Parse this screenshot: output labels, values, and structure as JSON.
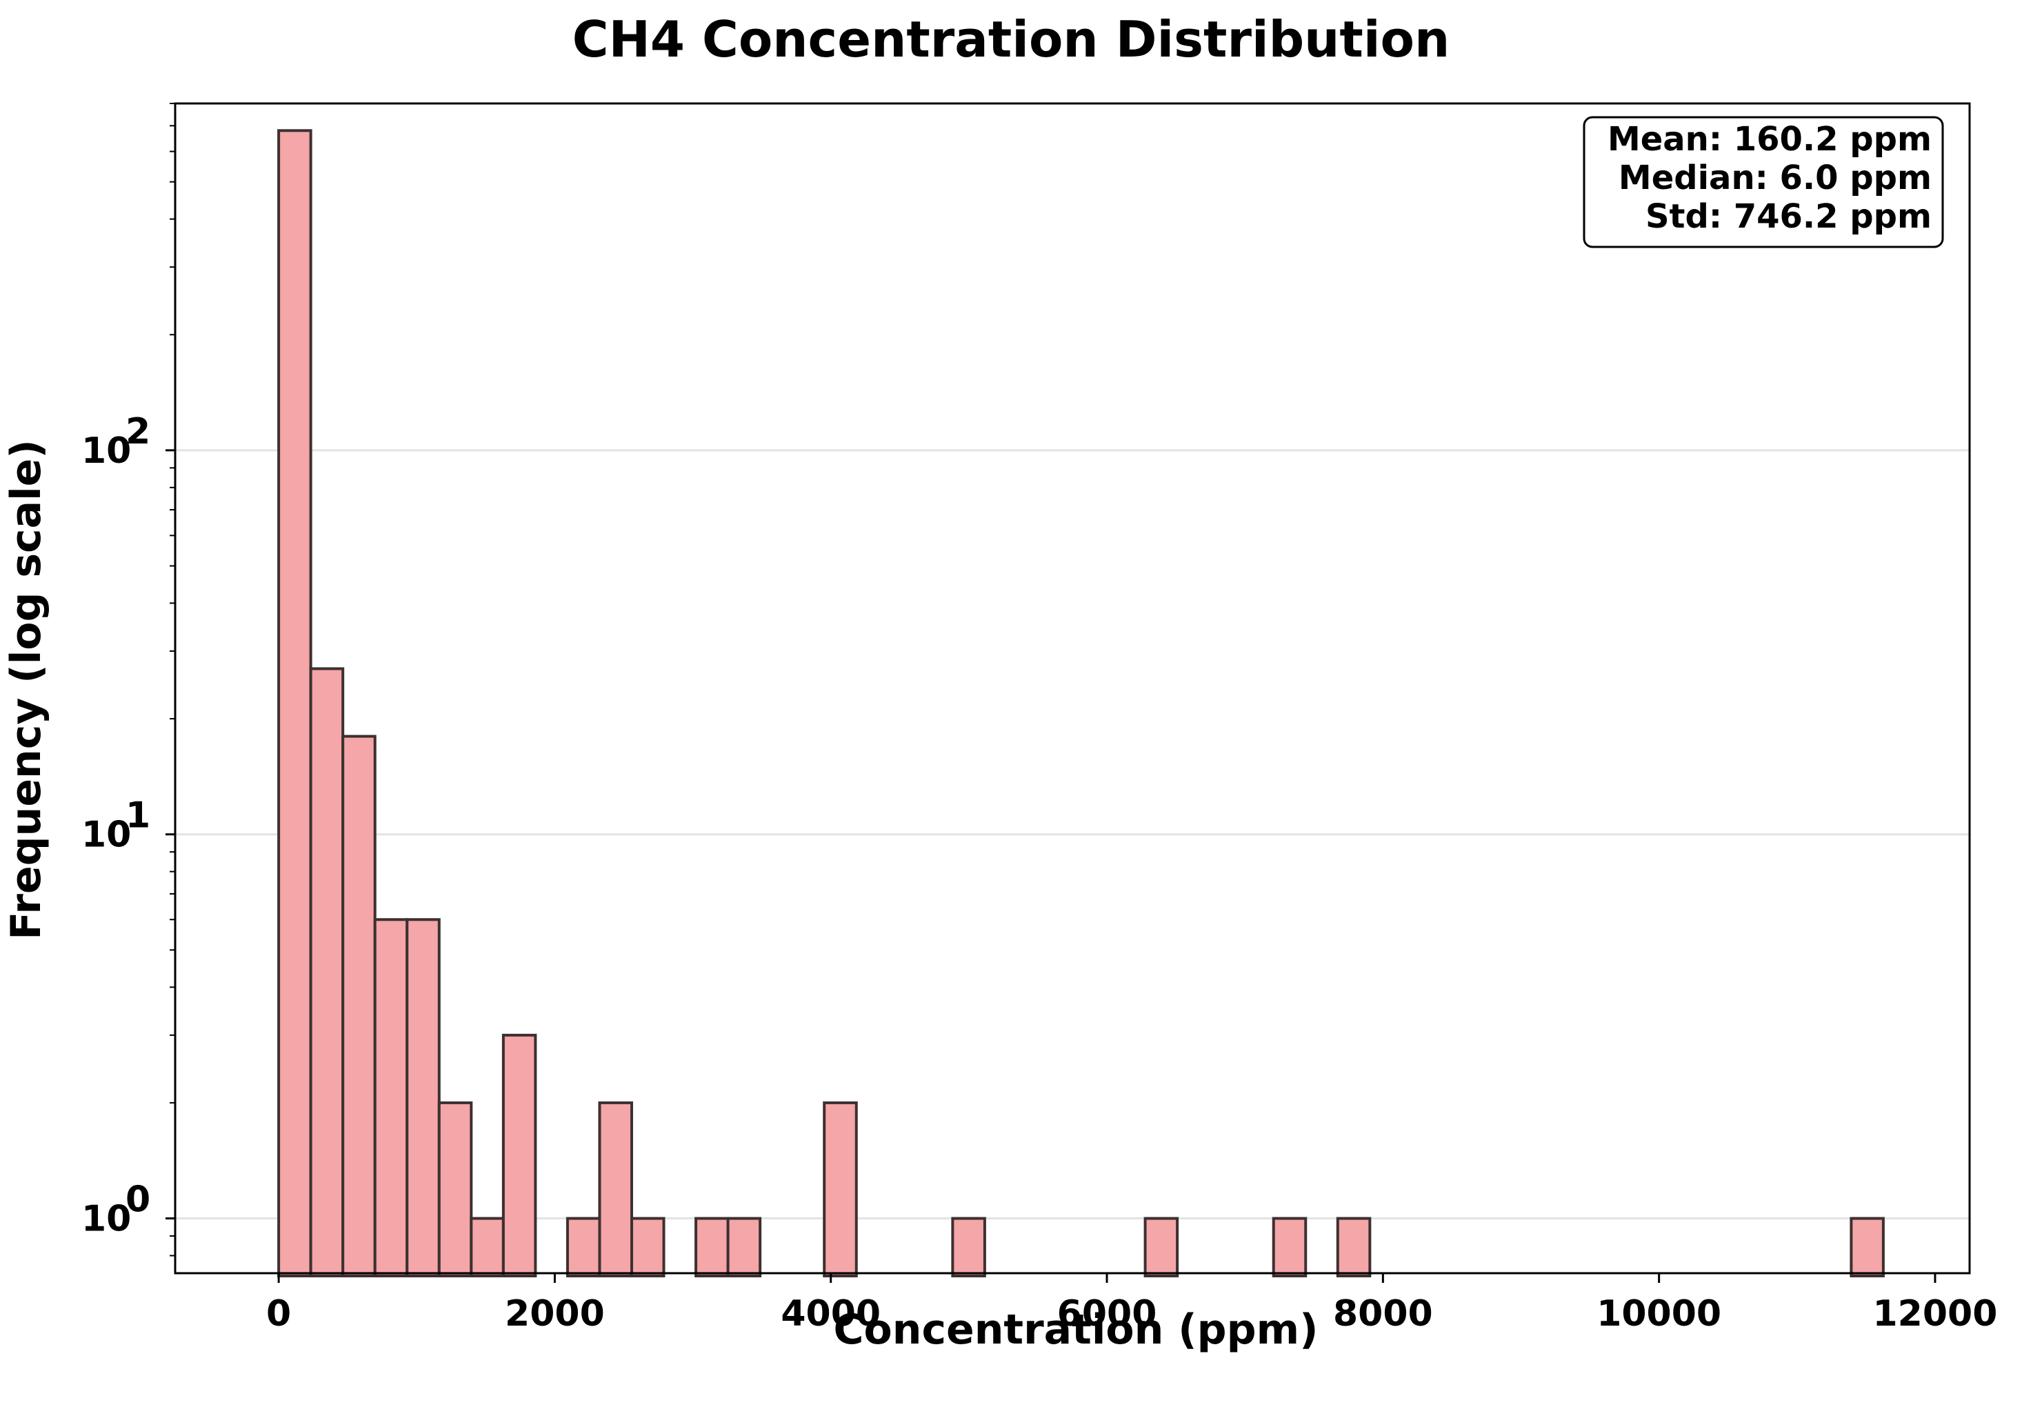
{
  "chart_data": {
    "type": "bar",
    "title": "CH4 Concentration Distribution",
    "xlabel": "Concentration (ppm)",
    "ylabel": "Frequency (log scale)",
    "yscale": "log",
    "xlim": [
      -750,
      12250
    ],
    "ylim": [
      0.72,
      800
    ],
    "grid": "horizontal",
    "x_ticks": [
      0,
      2000,
      4000,
      6000,
      8000,
      10000,
      12000
    ],
    "x_tick_labels": [
      "0",
      "2000",
      "4000",
      "6000",
      "8000",
      "10000",
      "12000"
    ],
    "y_ticks": [
      1,
      10,
      100
    ],
    "y_tick_labels": [
      "10",
      "10",
      "10"
    ],
    "y_tick_exponents": [
      "0",
      "1",
      "2"
    ],
    "bin_width": 232.5,
    "bin_start": 0,
    "bins": [
      {
        "index": 0,
        "count": 680
      },
      {
        "index": 1,
        "count": 27
      },
      {
        "index": 2,
        "count": 18
      },
      {
        "index": 3,
        "count": 6
      },
      {
        "index": 4,
        "count": 6
      },
      {
        "index": 5,
        "count": 2
      },
      {
        "index": 6,
        "count": 1
      },
      {
        "index": 7,
        "count": 3
      },
      {
        "index": 9,
        "count": 1
      },
      {
        "index": 10,
        "count": 2
      },
      {
        "index": 11,
        "count": 1
      },
      {
        "index": 13,
        "count": 1
      },
      {
        "index": 14,
        "count": 1
      },
      {
        "index": 17,
        "count": 2
      },
      {
        "index": 21,
        "count": 1
      },
      {
        "index": 27,
        "count": 1
      },
      {
        "index": 31,
        "count": 1
      },
      {
        "index": 33,
        "count": 1
      },
      {
        "index": 49,
        "count": 1
      }
    ],
    "bar_color": "#f4a6a8",
    "bar_edge_color": "#3d3030",
    "stats_box": {
      "mean": "Mean: 160.2 ppm",
      "median": "Median: 6.0 ppm",
      "std": "Std: 746.2 ppm",
      "placement": "top-right"
    }
  }
}
